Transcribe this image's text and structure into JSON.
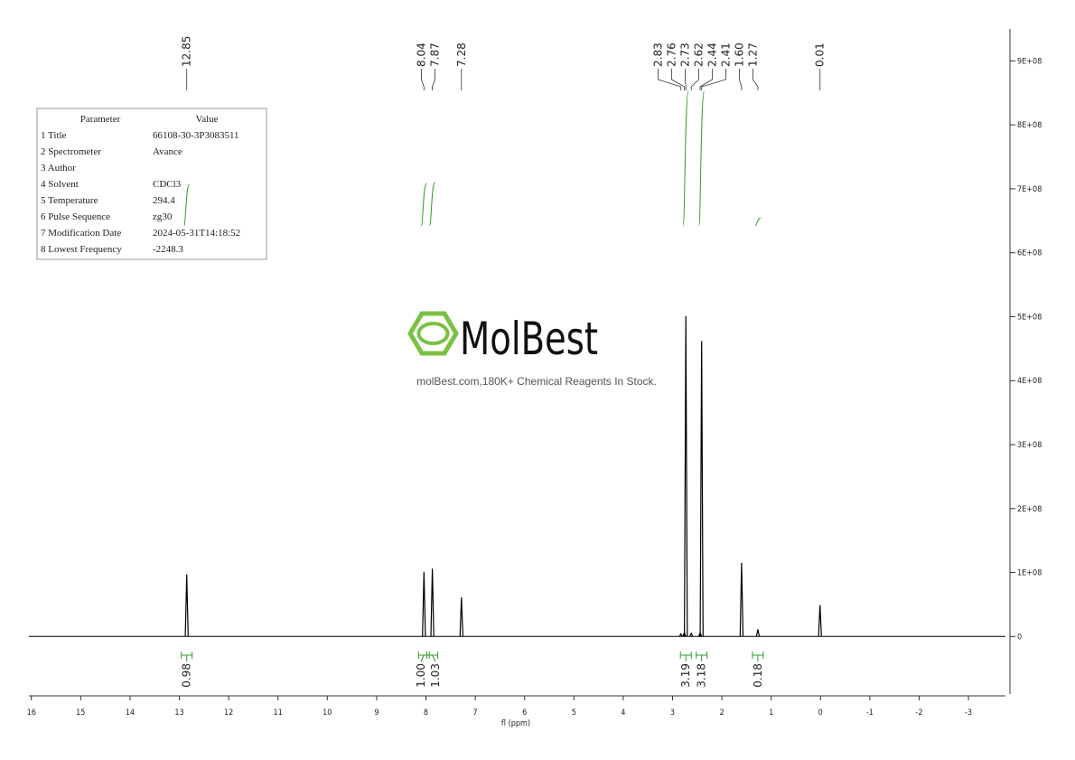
{
  "chart_data": {
    "type": "spectrum",
    "xlabel": "fl (ppm)",
    "xlim": [
      16.05,
      -3.75
    ],
    "xticks": [
      16,
      15,
      14,
      13,
      12,
      11,
      10,
      9,
      8,
      7,
      6,
      5,
      4,
      3,
      2,
      1,
      0,
      -1,
      -2,
      -3
    ],
    "ylim": [
      -90000000,
      950000000
    ],
    "yticks": [
      {
        "value": 0,
        "label": "0"
      },
      {
        "value": 100000000,
        "label": "1E+08"
      },
      {
        "value": 200000000,
        "label": "2E+08"
      },
      {
        "value": 300000000,
        "label": "3E+08"
      },
      {
        "value": 400000000,
        "label": "4E+08"
      },
      {
        "value": 500000000,
        "label": "5E+08"
      },
      {
        "value": 600000000,
        "label": "6E+08"
      },
      {
        "value": 700000000,
        "label": "7E+08"
      },
      {
        "value": 800000000,
        "label": "8E+08"
      },
      {
        "value": 900000000,
        "label": "9E+08"
      }
    ],
    "peaks": {
      "color": "#000000",
      "x": [
        12.85,
        8.04,
        7.87,
        7.28,
        2.83,
        2.76,
        2.73,
        2.62,
        2.44,
        2.41,
        1.6,
        1.27,
        0.01
      ],
      "values": [
        97000000,
        101000000,
        106000000,
        61000000,
        4000000,
        6000000,
        501000000,
        5000000,
        6000000,
        462000000,
        115000000,
        11000000,
        49000000
      ]
    },
    "peak_labels": [
      12.85,
      8.04,
      7.87,
      7.28,
      2.83,
      2.76,
      2.73,
      2.62,
      2.44,
      2.41,
      {
        "value": 1.6,
        "label": "1.60"
      },
      1.27,
      0.01
    ],
    "integrals": {
      "color": "#2e9e2e",
      "x": [
        12.85,
        8.04,
        7.87,
        2.73,
        2.41,
        1.27
      ],
      "values": [
        0.98,
        1.0,
        1.03,
        3.19,
        3.18,
        0.18
      ],
      "value_labels": [
        "0.98",
        "1.00",
        "1.03",
        "3.19",
        "3.18",
        "0.18"
      ]
    }
  },
  "parameters": {
    "header": [
      "Parameter",
      "Value"
    ],
    "rows": [
      [
        "1 Title",
        "66108-30-3P3083511"
      ],
      [
        "2 Spectrometer",
        "Avance"
      ],
      [
        "3 Author"
      ],
      [
        "4 Solvent",
        "CDCl3"
      ],
      [
        "5 Temperature",
        "294.4"
      ],
      [
        "6 Pulse Sequence",
        "zg30"
      ],
      [
        "7 Modification Date",
        "2024-05-31T14:18:52"
      ],
      [
        "8 Lowest Frequency",
        "-2248.3"
      ]
    ]
  },
  "watermark": {
    "brand": "MolBest",
    "slogan": "molBest.com,180K+ Chemical Reagents In Stock."
  }
}
